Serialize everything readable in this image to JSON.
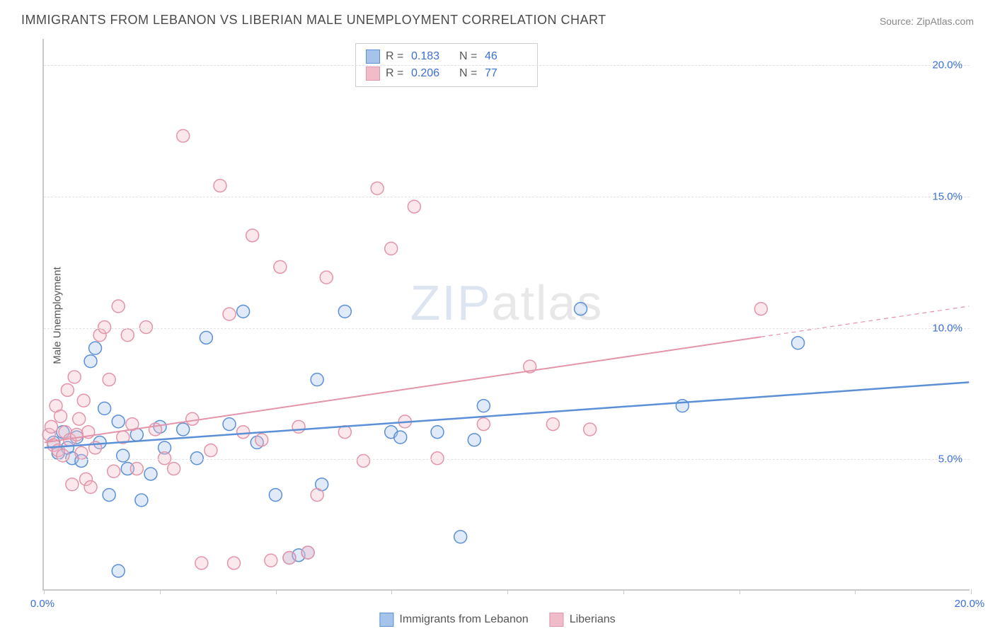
{
  "title": "IMMIGRANTS FROM LEBANON VS LIBERIAN MALE UNEMPLOYMENT CORRELATION CHART",
  "source": "Source: ZipAtlas.com",
  "ylabel": "Male Unemployment",
  "watermark_prefix": "ZIP",
  "watermark_suffix": "atlas",
  "chart": {
    "type": "scatter",
    "xlim": [
      0,
      20
    ],
    "ylim": [
      0,
      21
    ],
    "xticks": [
      0,
      2.5,
      5,
      7.5,
      10,
      12.5,
      15,
      17.5,
      20
    ],
    "xtick_labels": {
      "0": "0.0%",
      "20": "20.0%"
    },
    "yticks": [
      5,
      10,
      15,
      20
    ],
    "ytick_labels": [
      "5.0%",
      "10.0%",
      "15.0%",
      "20.0%"
    ],
    "grid_color": "#e2e2e2",
    "axis_color": "#c9c9c9",
    "background_color": "#ffffff",
    "marker_radius": 9,
    "marker_fill_opacity": 0.35,
    "marker_stroke_width": 1.5,
    "series": [
      {
        "name": "Immigrants from Lebanon",
        "color_stroke": "#5b8fd6",
        "color_fill": "#a6c4ea",
        "R": 0.183,
        "N": 46,
        "regression": {
          "y_at_x0": 5.4,
          "y_at_x20": 7.9,
          "solid_until_x": 20,
          "line_width": 2.5
        },
        "points": [
          [
            0.2,
            5.6
          ],
          [
            0.3,
            5.2
          ],
          [
            0.4,
            6.0
          ],
          [
            0.5,
            5.4
          ],
          [
            0.6,
            5.0
          ],
          [
            0.7,
            5.8
          ],
          [
            0.8,
            4.9
          ],
          [
            1.0,
            8.7
          ],
          [
            1.1,
            9.2
          ],
          [
            1.2,
            5.6
          ],
          [
            1.3,
            6.9
          ],
          [
            1.4,
            3.6
          ],
          [
            1.6,
            6.4
          ],
          [
            1.6,
            0.7
          ],
          [
            1.7,
            5.1
          ],
          [
            1.8,
            4.6
          ],
          [
            2.0,
            5.9
          ],
          [
            2.1,
            3.4
          ],
          [
            2.3,
            4.4
          ],
          [
            2.5,
            6.2
          ],
          [
            2.6,
            5.4
          ],
          [
            3.0,
            6.1
          ],
          [
            3.3,
            5.0
          ],
          [
            3.5,
            9.6
          ],
          [
            4.0,
            6.3
          ],
          [
            4.3,
            10.6
          ],
          [
            4.6,
            5.6
          ],
          [
            5.0,
            3.6
          ],
          [
            5.3,
            1.2
          ],
          [
            5.5,
            1.3
          ],
          [
            5.7,
            1.4
          ],
          [
            5.9,
            8.0
          ],
          [
            6.0,
            4.0
          ],
          [
            6.5,
            10.6
          ],
          [
            7.5,
            6.0
          ],
          [
            7.7,
            5.8
          ],
          [
            8.5,
            6.0
          ],
          [
            9.0,
            2.0
          ],
          [
            9.3,
            5.7
          ],
          [
            9.5,
            7.0
          ],
          [
            11.6,
            10.7
          ],
          [
            13.8,
            7.0
          ],
          [
            16.3,
            9.4
          ]
        ]
      },
      {
        "name": "Liberians",
        "color_stroke": "#e394a8",
        "color_fill": "#f1bcc9",
        "R": 0.206,
        "N": 77,
        "regression": {
          "y_at_x0": 5.6,
          "y_at_x20": 10.8,
          "solid_until_x": 15.5,
          "line_width": 2
        },
        "points": [
          [
            0.1,
            5.9
          ],
          [
            0.15,
            6.2
          ],
          [
            0.2,
            5.5
          ],
          [
            0.25,
            7.0
          ],
          [
            0.3,
            5.3
          ],
          [
            0.35,
            6.6
          ],
          [
            0.4,
            5.1
          ],
          [
            0.45,
            6.0
          ],
          [
            0.5,
            7.6
          ],
          [
            0.55,
            5.7
          ],
          [
            0.6,
            4.0
          ],
          [
            0.65,
            8.1
          ],
          [
            0.7,
            5.9
          ],
          [
            0.75,
            6.5
          ],
          [
            0.8,
            5.2
          ],
          [
            0.85,
            7.2
          ],
          [
            0.9,
            4.2
          ],
          [
            0.95,
            6.0
          ],
          [
            1.0,
            3.9
          ],
          [
            1.1,
            5.4
          ],
          [
            1.2,
            9.7
          ],
          [
            1.3,
            10.0
          ],
          [
            1.4,
            8.0
          ],
          [
            1.5,
            4.5
          ],
          [
            1.6,
            10.8
          ],
          [
            1.7,
            5.8
          ],
          [
            1.8,
            9.7
          ],
          [
            1.9,
            6.3
          ],
          [
            2.0,
            4.6
          ],
          [
            2.2,
            10.0
          ],
          [
            2.4,
            6.1
          ],
          [
            2.6,
            5.0
          ],
          [
            2.8,
            4.6
          ],
          [
            3.0,
            17.3
          ],
          [
            3.2,
            6.5
          ],
          [
            3.4,
            1.0
          ],
          [
            3.6,
            5.3
          ],
          [
            3.8,
            15.4
          ],
          [
            4.0,
            10.5
          ],
          [
            4.1,
            1.0
          ],
          [
            4.3,
            6.0
          ],
          [
            4.5,
            13.5
          ],
          [
            4.7,
            5.7
          ],
          [
            4.9,
            1.1
          ],
          [
            5.1,
            12.3
          ],
          [
            5.3,
            1.2
          ],
          [
            5.5,
            6.2
          ],
          [
            5.7,
            1.4
          ],
          [
            5.9,
            3.6
          ],
          [
            6.1,
            11.9
          ],
          [
            6.5,
            6.0
          ],
          [
            6.9,
            4.9
          ],
          [
            7.2,
            15.3
          ],
          [
            7.5,
            13.0
          ],
          [
            7.8,
            6.4
          ],
          [
            8.0,
            14.6
          ],
          [
            8.5,
            5.0
          ],
          [
            9.5,
            6.3
          ],
          [
            10.5,
            8.5
          ],
          [
            11.0,
            6.3
          ],
          [
            11.8,
            6.1
          ],
          [
            15.5,
            10.7
          ]
        ]
      }
    ]
  },
  "legend_top": {
    "rows": [
      {
        "swatch_fill": "#a6c4ea",
        "swatch_stroke": "#5b8fd6",
        "r_label": "R =",
        "r_val": "0.183",
        "n_label": "N =",
        "n_val": "46"
      },
      {
        "swatch_fill": "#f1bcc9",
        "swatch_stroke": "#e394a8",
        "r_label": "R =",
        "r_val": "0.206",
        "n_label": "N =",
        "n_val": "77"
      }
    ]
  },
  "legend_bottom": [
    {
      "swatch_fill": "#a6c4ea",
      "swatch_stroke": "#5b8fd6",
      "label": "Immigrants from Lebanon"
    },
    {
      "swatch_fill": "#f1bcc9",
      "swatch_stroke": "#e394a8",
      "label": "Liberians"
    }
  ],
  "colors": {
    "tick_text": "#3b6fd4",
    "title_text": "#4a4a4a",
    "source_text": "#888888"
  }
}
